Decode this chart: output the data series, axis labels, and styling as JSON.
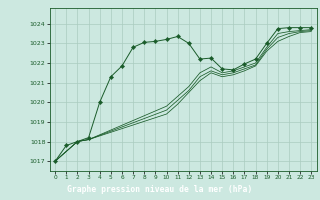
{
  "title": "Graphe pression niveau de la mer (hPa)",
  "background_color": "#cce8e0",
  "plot_bg_color": "#cce8e0",
  "footer_bg_color": "#2d6e3e",
  "grid_color": "#aaccc0",
  "line_color": "#1a5c2a",
  "xlim": [
    -0.5,
    23.5
  ],
  "ylim": [
    1016.5,
    1024.8
  ],
  "yticks": [
    1017,
    1018,
    1019,
    1020,
    1021,
    1022,
    1023,
    1024
  ],
  "xticks": [
    0,
    1,
    2,
    3,
    4,
    5,
    6,
    7,
    8,
    9,
    10,
    11,
    12,
    13,
    14,
    15,
    16,
    17,
    18,
    19,
    20,
    21,
    22,
    23
  ],
  "series_marked": [
    [
      0,
      1017.0
    ],
    [
      1,
      1017.8
    ],
    [
      2,
      1018.0
    ],
    [
      3,
      1018.2
    ],
    [
      4,
      1020.0
    ],
    [
      5,
      1021.3
    ],
    [
      6,
      1021.85
    ],
    [
      7,
      1022.8
    ],
    [
      8,
      1023.05
    ],
    [
      9,
      1023.1
    ],
    [
      10,
      1023.2
    ],
    [
      11,
      1023.35
    ],
    [
      12,
      1023.0
    ],
    [
      13,
      1022.2
    ],
    [
      14,
      1022.25
    ],
    [
      15,
      1021.7
    ],
    [
      16,
      1021.65
    ],
    [
      17,
      1021.95
    ],
    [
      18,
      1022.2
    ],
    [
      19,
      1023.0
    ],
    [
      20,
      1023.75
    ],
    [
      21,
      1023.8
    ],
    [
      22,
      1023.8
    ],
    [
      23,
      1023.8
    ]
  ],
  "series_line1": [
    [
      0,
      1017.0
    ],
    [
      2,
      1018.0
    ],
    [
      3,
      1018.1
    ],
    [
      10,
      1019.8
    ],
    [
      11,
      1020.3
    ],
    [
      12,
      1020.8
    ],
    [
      13,
      1021.5
    ],
    [
      14,
      1021.8
    ],
    [
      15,
      1021.5
    ],
    [
      16,
      1021.6
    ],
    [
      17,
      1021.8
    ],
    [
      18,
      1022.0
    ],
    [
      19,
      1022.8
    ],
    [
      20,
      1023.5
    ],
    [
      21,
      1023.6
    ],
    [
      22,
      1023.65
    ],
    [
      23,
      1023.7
    ]
  ],
  "series_line2": [
    [
      0,
      1017.0
    ],
    [
      2,
      1018.0
    ],
    [
      3,
      1018.1
    ],
    [
      10,
      1019.6
    ],
    [
      11,
      1020.1
    ],
    [
      12,
      1020.6
    ],
    [
      13,
      1021.3
    ],
    [
      14,
      1021.6
    ],
    [
      15,
      1021.4
    ],
    [
      16,
      1021.5
    ],
    [
      17,
      1021.7
    ],
    [
      18,
      1021.9
    ],
    [
      19,
      1022.7
    ],
    [
      20,
      1023.3
    ],
    [
      21,
      1023.5
    ],
    [
      22,
      1023.6
    ],
    [
      23,
      1023.65
    ]
  ],
  "series_line3": [
    [
      0,
      1017.0
    ],
    [
      2,
      1018.0
    ],
    [
      3,
      1018.1
    ],
    [
      10,
      1019.4
    ],
    [
      11,
      1019.9
    ],
    [
      12,
      1020.5
    ],
    [
      13,
      1021.1
    ],
    [
      14,
      1021.5
    ],
    [
      15,
      1021.3
    ],
    [
      16,
      1021.4
    ],
    [
      17,
      1021.6
    ],
    [
      18,
      1021.85
    ],
    [
      19,
      1022.6
    ],
    [
      20,
      1023.1
    ],
    [
      21,
      1023.35
    ],
    [
      22,
      1023.55
    ],
    [
      23,
      1023.6
    ]
  ]
}
